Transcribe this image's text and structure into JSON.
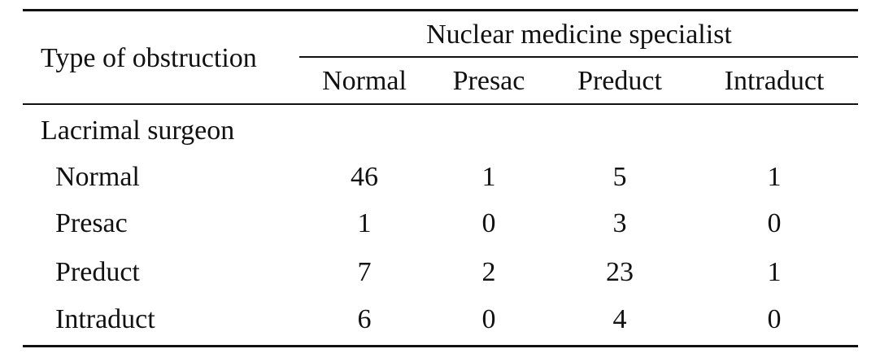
{
  "table": {
    "stub_header": "Type of obstruction",
    "column_group_header": "Nuclear medicine specialist",
    "columns": [
      "Normal",
      "Presac",
      "Preduct",
      "Intraduct"
    ],
    "row_group_label": "Lacrimal surgeon",
    "rows": [
      {
        "label": "Normal",
        "values": [
          "46",
          "1",
          "5",
          "1"
        ]
      },
      {
        "label": "Presac",
        "values": [
          "1",
          "0",
          "3",
          "0"
        ]
      },
      {
        "label": "Preduct",
        "values": [
          "7",
          "2",
          "23",
          "1"
        ]
      },
      {
        "label": "Intraduct",
        "values": [
          "6",
          "0",
          "4",
          "0"
        ]
      }
    ]
  },
  "chart_data": {
    "type": "table",
    "title": "",
    "row_header": "Lacrimal surgeon",
    "column_header": "Nuclear medicine specialist",
    "categories": [
      "Normal",
      "Presac",
      "Preduct",
      "Intraduct"
    ],
    "series": [
      {
        "name": "Normal",
        "values": [
          46,
          1,
          5,
          1
        ]
      },
      {
        "name": "Presac",
        "values": [
          1,
          0,
          3,
          0
        ]
      },
      {
        "name": "Preduct",
        "values": [
          7,
          2,
          23,
          1
        ]
      },
      {
        "name": "Intraduct",
        "values": [
          6,
          0,
          4,
          0
        ]
      }
    ]
  }
}
